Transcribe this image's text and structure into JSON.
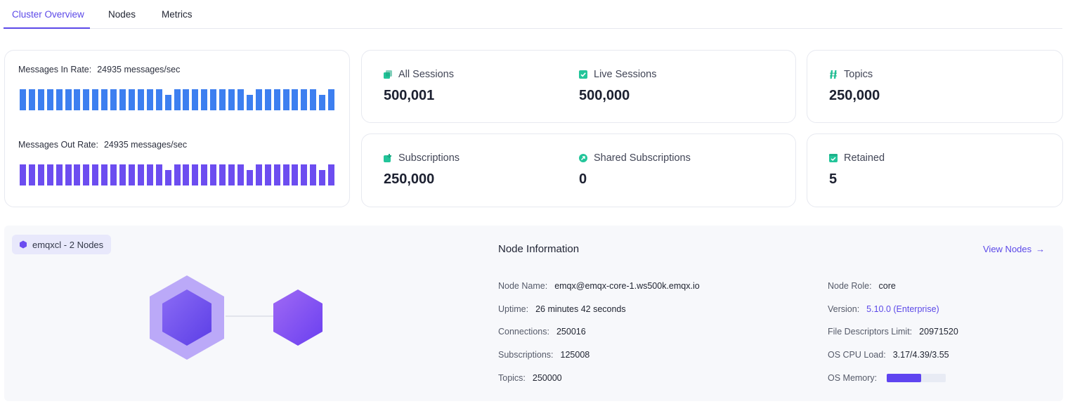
{
  "tabs": [
    {
      "label": "Cluster Overview",
      "active": true
    },
    {
      "label": "Nodes",
      "active": false
    },
    {
      "label": "Metrics",
      "active": false
    }
  ],
  "rates": {
    "in": {
      "label": "Messages In Rate:",
      "value": "24935 messages/sec",
      "bars": [
        1,
        1,
        1,
        1,
        1,
        1,
        1,
        1,
        1,
        1,
        1,
        1,
        1,
        1,
        1,
        1,
        0.72,
        1,
        1,
        1,
        1,
        1,
        1,
        1,
        1,
        0.72,
        1,
        1,
        1,
        1,
        1,
        1,
        1,
        0.72,
        1
      ],
      "color": "#3d7ff0"
    },
    "out": {
      "label": "Messages Out Rate:",
      "value": "24935 messages/sec",
      "bars": [
        1,
        1,
        1,
        1,
        1,
        1,
        1,
        1,
        1,
        1,
        1,
        1,
        1,
        1,
        1,
        1,
        0.72,
        1,
        1,
        1,
        1,
        1,
        1,
        1,
        1,
        0.72,
        1,
        1,
        1,
        1,
        1,
        1,
        1,
        0.72,
        1
      ],
      "color": "#6c4df0"
    }
  },
  "stats": {
    "all_sessions": {
      "label": "All Sessions",
      "value": "500,001",
      "icon": "sessions-icon"
    },
    "live_sessions": {
      "label": "Live Sessions",
      "value": "500,000",
      "icon": "live-sessions-icon"
    },
    "topics": {
      "label": "Topics",
      "value": "250,000",
      "icon": "topics-icon"
    },
    "subscriptions": {
      "label": "Subscriptions",
      "value": "250,000",
      "icon": "subscriptions-icon"
    },
    "shared_subscriptions": {
      "label": "Shared Subscriptions",
      "value": "0",
      "icon": "shared-subscriptions-icon"
    },
    "retained": {
      "label": "Retained",
      "value": "5",
      "icon": "retained-icon"
    }
  },
  "cluster": {
    "badge": "emqxcl - 2 Nodes"
  },
  "node_info": {
    "title": "Node Information",
    "view_nodes": "View Nodes",
    "left": [
      {
        "key": "Node Name:",
        "value": "emqx@emqx-core-1.ws500k.emqx.io"
      },
      {
        "key": "Uptime:",
        "value": "26 minutes 42 seconds"
      },
      {
        "key": "Connections:",
        "value": "250016"
      },
      {
        "key": "Subscriptions:",
        "value": "125008"
      },
      {
        "key": "Topics:",
        "value": "250000"
      }
    ],
    "right": [
      {
        "key": "Node Role:",
        "value": "core"
      },
      {
        "key": "Version:",
        "value": "5.10.0 (Enterprise)"
      },
      {
        "key": "File Descriptors Limit:",
        "value": "20971520"
      },
      {
        "key": "OS CPU Load:",
        "value": "3.17/4.39/3.55"
      },
      {
        "key": "OS Memory:",
        "value": ""
      }
    ],
    "os_memory_fraction": 0.58
  },
  "colors": {
    "accent": "#5c49e8",
    "in_bars": "#3d7ff0",
    "out_bars": "#6c4df0",
    "stat_icon": "#23c59a"
  }
}
